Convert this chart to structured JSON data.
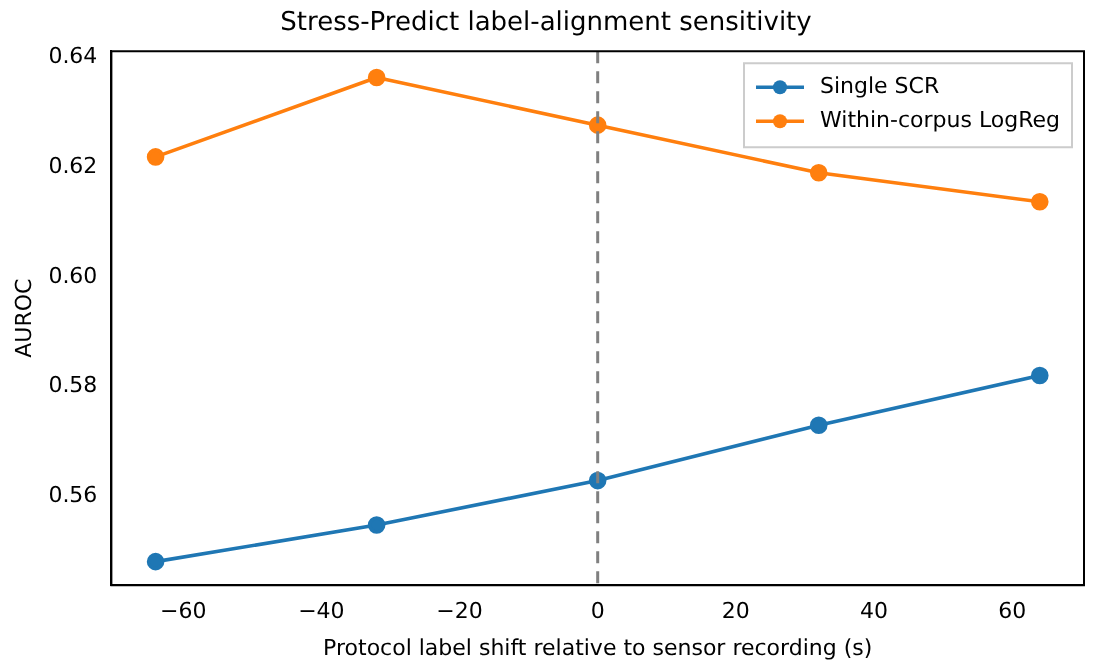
{
  "chart_data": {
    "type": "line",
    "title": "Stress-Predict label-alignment sensitivity",
    "xlabel": "Protocol label shift relative to sensor recording (s)",
    "ylabel": "AUROC",
    "x": [
      -64,
      -32,
      0,
      32,
      64
    ],
    "series": [
      {
        "name": "Single SCR",
        "color": "#1f77b4",
        "values": [
          0.548,
          0.5547,
          0.5628,
          0.5729,
          0.582
        ]
      },
      {
        "name": "Within-corpus LogReg",
        "color": "#ff7f0e",
        "values": [
          0.6219,
          0.6364,
          0.6277,
          0.619,
          0.6137
        ]
      }
    ],
    "xlim": [
      -70.4,
      70.4
    ],
    "xticks": [
      -60,
      -40,
      -20,
      0,
      20,
      40,
      60
    ],
    "ylim": [
      0.5437,
      0.6412
    ],
    "yticks": [
      0.56,
      0.58,
      {
        "value": 0.6,
        "label": "0.60"
      },
      0.62,
      0.64
    ],
    "ref_lines": [
      {
        "axis": "x",
        "value": 0,
        "color": "#808080",
        "line_style": "dashed"
      }
    ],
    "grid": false,
    "legend": "top right",
    "marker": "circle",
    "line_style": "solid"
  }
}
